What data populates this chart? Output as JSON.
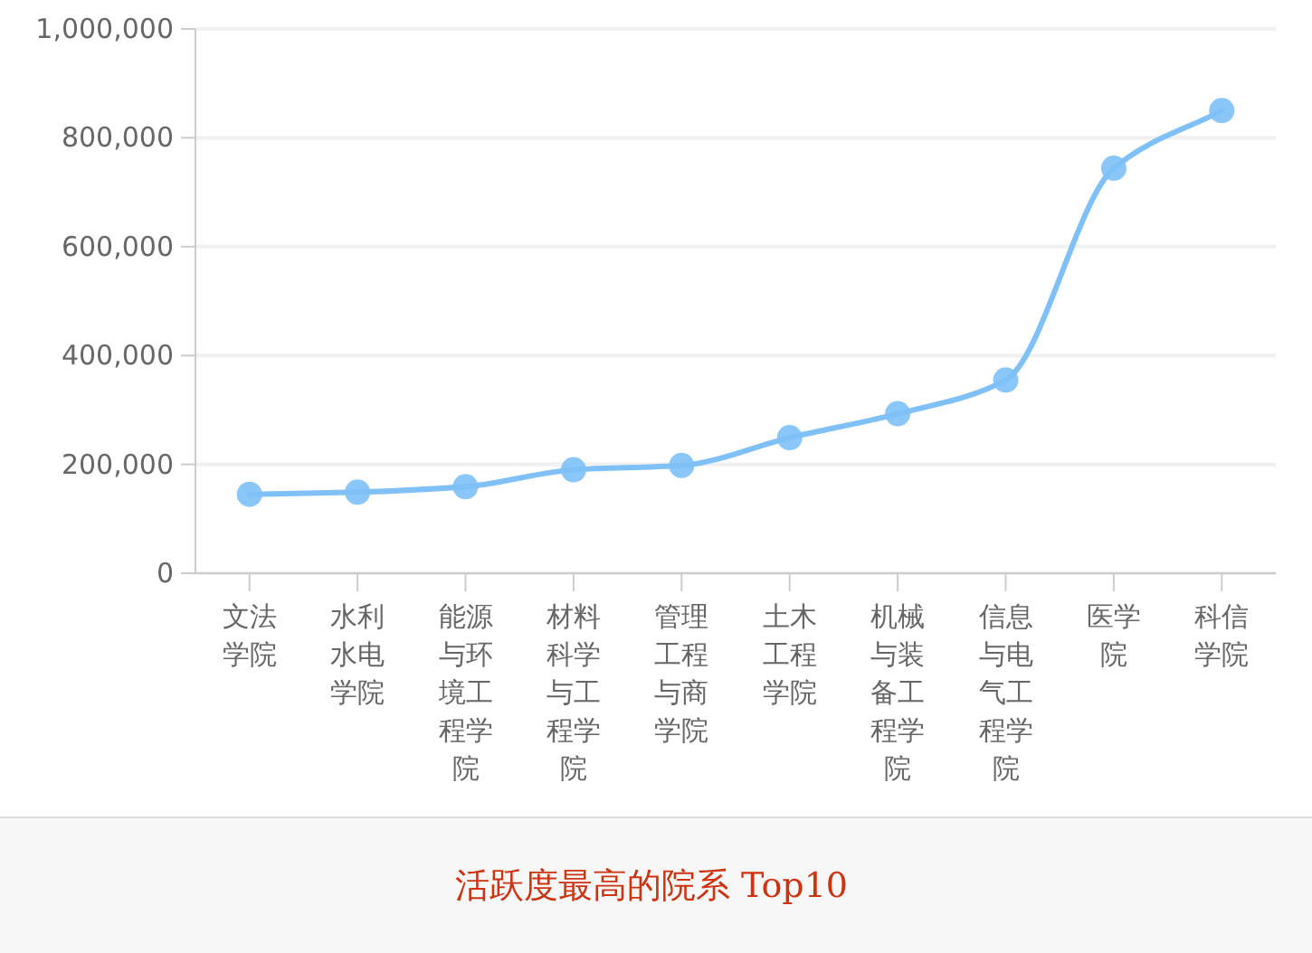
{
  "chart_data": {
    "type": "line",
    "title": "活跃度最高的院系 Top10",
    "categories": [
      "文法学院",
      "水利水电学院",
      "能源与环境工程学院",
      "材料科学与工程学院",
      "管理工程与商学院",
      "土木工程学院",
      "机械与装备工程学院",
      "信息与电气工程学院",
      "医学院",
      "科信学院"
    ],
    "series": [
      {
        "color": "#7ec0f7",
        "values": [
          145000,
          149000,
          159000,
          190000,
          198000,
          249000,
          293000,
          355000,
          744000,
          850000
        ]
      }
    ],
    "ylim": [
      0,
      1000000
    ],
    "yticks": [
      {
        "value": 0,
        "label": "0"
      },
      {
        "value": 200000,
        "label": "200,000"
      },
      {
        "value": 400000,
        "label": "400,000"
      },
      {
        "value": 600000,
        "label": "600,000"
      },
      {
        "value": 800000,
        "label": "800,000"
      },
      {
        "value": 1000000,
        "label": "1,000,000"
      }
    ],
    "grid": "y",
    "marker": "circle",
    "line_style": "solid"
  }
}
